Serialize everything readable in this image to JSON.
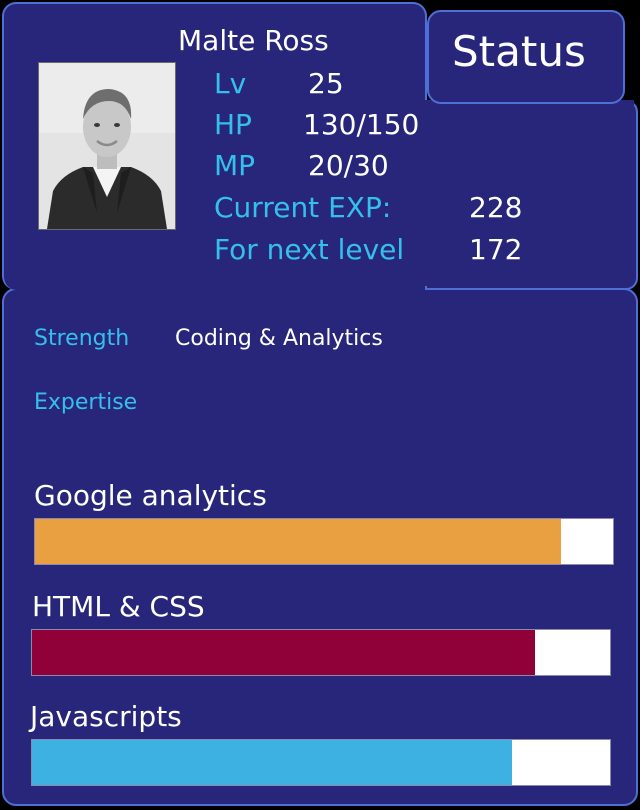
{
  "character": {
    "name": "Malte Ross",
    "portrait": "portrait-photo"
  },
  "status_tab": {
    "title": "Status"
  },
  "stats": {
    "level": {
      "label": "Lv",
      "value": "25"
    },
    "hp": {
      "label": "HP",
      "value": "130/150"
    },
    "mp": {
      "label": "MP",
      "value": "20/30"
    },
    "current_exp": {
      "label": "Current EXP:",
      "value": "228"
    },
    "next_level": {
      "label": "For next level",
      "value": "172"
    }
  },
  "details": {
    "strength_label": "Strength",
    "strength_value": "Coding & Analytics",
    "expertise_label": "Expertise"
  },
  "skills": [
    {
      "name": "Google analytics",
      "level": 0.91,
      "color": "#e8a040"
    },
    {
      "name": "HTML & CSS",
      "level": 0.87,
      "color": "#900039"
    },
    {
      "name": "Javascripts",
      "level": 0.83,
      "color": "#3eb1e3"
    }
  ],
  "colors": {
    "panel": "#27267a",
    "border": "#4f6fd6",
    "label_accent": "#35c0ec",
    "background": "#000000"
  }
}
